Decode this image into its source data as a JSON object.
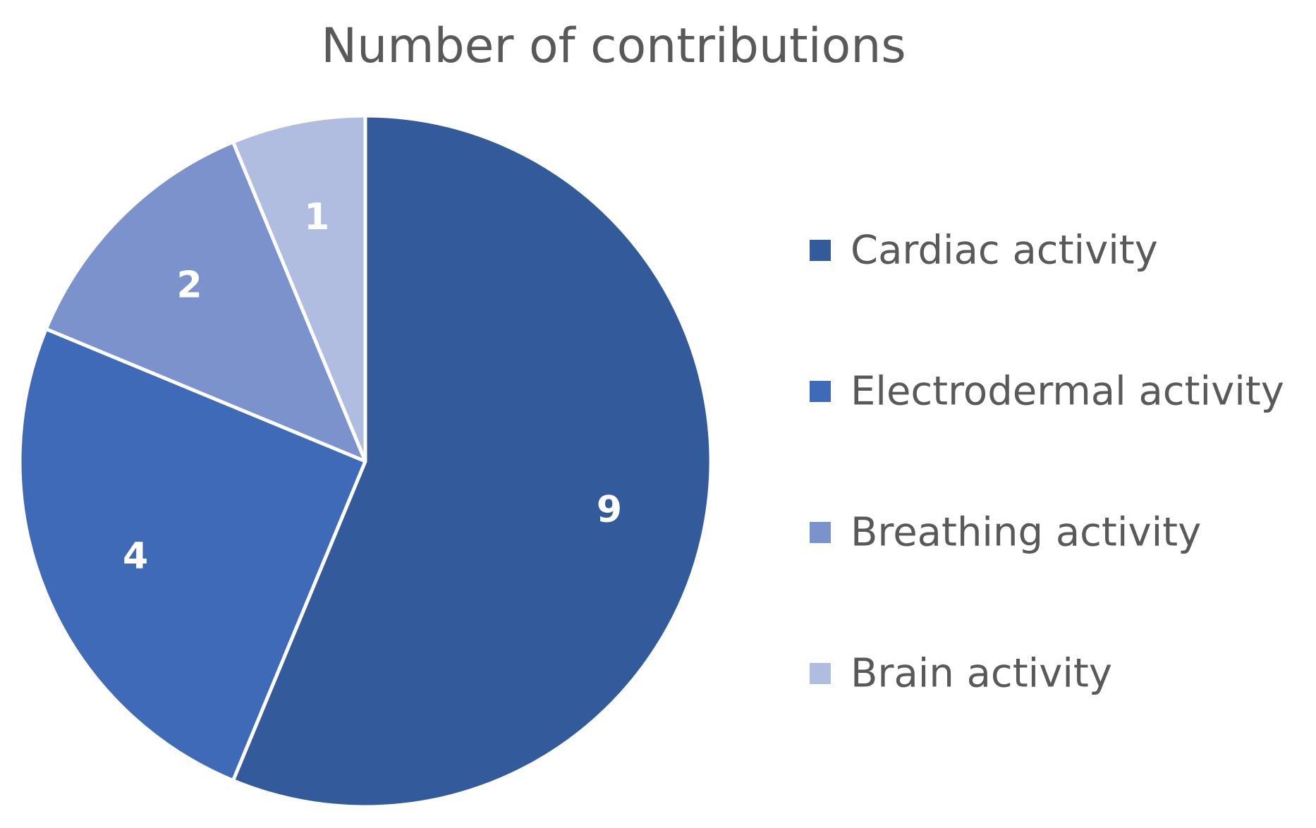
{
  "chart_data": {
    "type": "pie",
    "title": "Number of contributions",
    "categories": [
      "Cardiac activity",
      "Electrodermal activity",
      "Breathing activity",
      "Brain activity"
    ],
    "values": [
      9,
      4,
      2,
      1
    ],
    "data_labels": [
      "9",
      "4",
      "2",
      "1"
    ],
    "colors": [
      "#335a9a",
      "#3e6ab8",
      "#7b92cc",
      "#b1bde0"
    ],
    "slice_border_color": "#ffffff",
    "start_angle_deg": 0,
    "direction": "clockwise",
    "legend": {
      "placement": "right",
      "items": [
        "Cardiac activity",
        "Electrodermal activity",
        "Breathing activity",
        "Brain activity"
      ]
    }
  }
}
